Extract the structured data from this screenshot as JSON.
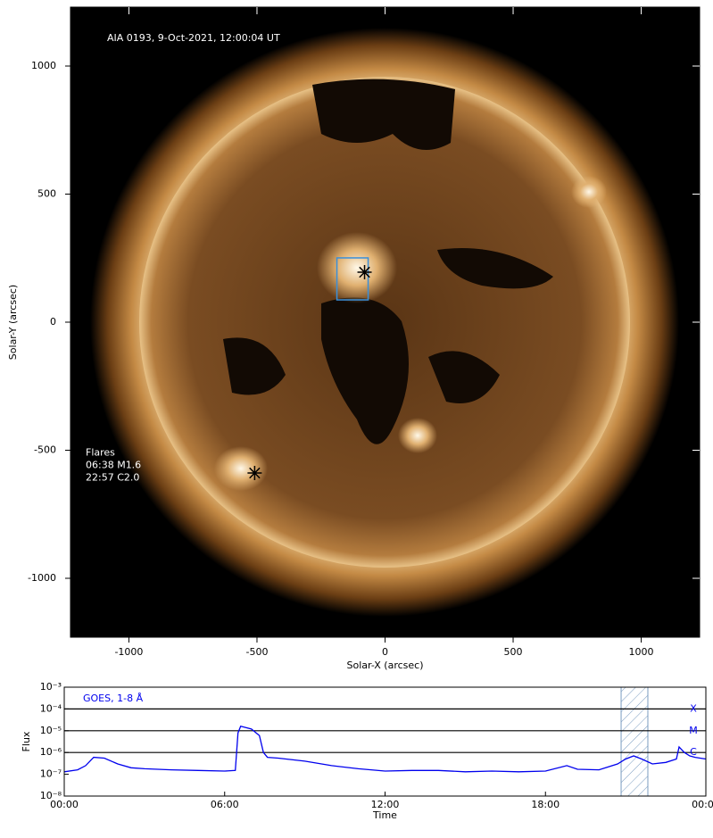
{
  "chart_data": [
    {
      "type": "image",
      "title": "AIA 0193, 9-Oct-2021, 12:00:04 UT",
      "xlabel": "Solar-X (arcsec)",
      "ylabel": "Solar-Y (arcsec)",
      "xlim": [
        -1228,
        1228
      ],
      "ylim": [
        -1230,
        1230
      ],
      "xticks": [
        -1000,
        -500,
        0,
        500,
        1000
      ],
      "yticks": [
        -1000,
        -500,
        0,
        500,
        1000
      ],
      "box": {
        "x": [
          -188,
          -66
        ],
        "y": [
          87,
          251
        ],
        "color": "#3a8fd9"
      },
      "flares_title": "Flares",
      "flares": [
        {
          "label": "06:38 M1.6",
          "x": -80,
          "y": 195
        },
        {
          "label": "22:57 C2.0",
          "x": -509,
          "y": -589
        }
      ]
    },
    {
      "type": "line",
      "label": "GOES, 1-8 Å",
      "xlabel": "Time",
      "ylabel": "Flux",
      "ylog": true,
      "xlim": [
        0,
        24
      ],
      "ylim": [
        1e-08,
        0.001
      ],
      "xticks": [
        {
          "value": 0,
          "label": "00:00"
        },
        {
          "value": 6,
          "label": "06:00"
        },
        {
          "value": 12,
          "label": "12:00"
        },
        {
          "value": 18,
          "label": "18:00"
        },
        {
          "value": 24,
          "label": "00:00"
        }
      ],
      "yticks": [
        {
          "value": 1e-08,
          "label": "10⁻⁸"
        },
        {
          "value": 1e-07,
          "label": "10⁻⁷"
        },
        {
          "value": 1e-06,
          "label": "10⁻⁶"
        },
        {
          "value": 1e-05,
          "label": "10⁻⁵"
        },
        {
          "value": 0.0001,
          "label": "10⁻⁴"
        },
        {
          "value": 0.001,
          "label": "10⁻³"
        }
      ],
      "levels": [
        {
          "value": 0.0001,
          "label": "X"
        },
        {
          "value": 1e-05,
          "label": "M"
        },
        {
          "value": 1e-06,
          "label": "C"
        }
      ],
      "span": [
        20.83,
        21.83
      ],
      "series": [
        {
          "color": "#0000ee",
          "x": [
            0,
            0.5,
            0.8,
            1.1,
            1.5,
            2,
            2.5,
            3,
            4,
            5,
            6,
            6.4,
            6.5,
            6.6,
            7,
            7.3,
            7.45,
            7.6,
            8,
            9,
            10,
            11,
            12,
            13,
            14,
            15,
            16,
            17,
            18,
            18.8,
            19.2,
            20,
            20.7,
            21,
            21.3,
            21.6,
            22,
            22.5,
            22.9,
            23,
            23.2,
            23.4,
            23.6,
            24
          ],
          "values": [
            1.3e-07,
            1.6e-07,
            2.5e-07,
            6e-07,
            5.5e-07,
            3e-07,
            2e-07,
            1.8e-07,
            1.6e-07,
            1.5e-07,
            1.4e-07,
            1.5e-07,
            8e-06,
            1.6e-05,
            1.2e-05,
            6e-06,
            1e-06,
            6e-07,
            5.5e-07,
            4e-07,
            2.5e-07,
            1.8e-07,
            1.4e-07,
            1.5e-07,
            1.5e-07,
            1.3e-07,
            1.4e-07,
            1.3e-07,
            1.4e-07,
            2.5e-07,
            1.7e-07,
            1.6e-07,
            3e-07,
            5e-07,
            7e-07,
            5e-07,
            3e-07,
            3.5e-07,
            5e-07,
            1.8e-06,
            1e-06,
            7e-07,
            6e-07,
            5e-07
          ]
        }
      ]
    }
  ]
}
